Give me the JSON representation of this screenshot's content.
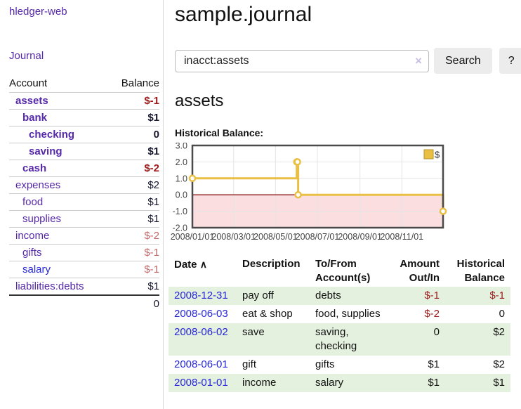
{
  "sidebar": {
    "brand": "hledger-web",
    "nav": {
      "journal": "Journal"
    },
    "accounts_table": {
      "headers": {
        "account": "Account",
        "balance": "Balance"
      },
      "rows": [
        {
          "name": "assets",
          "balance": "$-1"
        },
        {
          "name": "bank",
          "balance": "$1"
        },
        {
          "name": "checking",
          "balance": "0"
        },
        {
          "name": "saving",
          "balance": "$1"
        },
        {
          "name": "cash",
          "balance": "$-2"
        },
        {
          "name": "expenses",
          "balance": "$2"
        },
        {
          "name": "food",
          "balance": "$1"
        },
        {
          "name": "supplies",
          "balance": "$1"
        },
        {
          "name": "income",
          "balance": "$-2"
        },
        {
          "name": "gifts",
          "balance": "$-1"
        },
        {
          "name": "salary",
          "balance": "$-1"
        },
        {
          "name": "liabilities:debts",
          "balance": "$1"
        }
      ],
      "total": "0"
    }
  },
  "header": {
    "title": "sample.journal"
  },
  "search": {
    "query": "inacct:assets",
    "clear_icon": "×",
    "button_label": "Search",
    "help_label": "?"
  },
  "account_page": {
    "heading": "assets",
    "chart_label": "Historical Balance:"
  },
  "chart_data": {
    "type": "line",
    "title": "Historical Balance",
    "step": true,
    "ylim": [
      -2,
      3
    ],
    "yticks": [
      "3.0",
      "2.0",
      "1.0",
      "0.0",
      "-1.0",
      "-2.0"
    ],
    "xticks": [
      {
        "label": "2008/01/01",
        "day": 0
      },
      {
        "label": "2008/03/01",
        "day": 60
      },
      {
        "label": "2008/05/01",
        "day": 121
      },
      {
        "label": "2008/07/01",
        "day": 182
      },
      {
        "label": "2008/09/01",
        "day": 244
      },
      {
        "label": "2008/11/01",
        "day": 305
      }
    ],
    "x_domain_days": [
      0,
      365
    ],
    "series": [
      {
        "name": "$",
        "color": "#e9c044",
        "points": [
          {
            "date": "2008-01-01",
            "day": 0,
            "value": 1
          },
          {
            "date": "2008-06-01",
            "day": 152,
            "value": 2
          },
          {
            "date": "2008-06-02",
            "day": 153,
            "value": 2
          },
          {
            "date": "2008-06-03",
            "day": 154,
            "value": 0
          },
          {
            "date": "2008-12-31",
            "day": 365,
            "value": -1
          }
        ]
      }
    ],
    "legend": {
      "label": "$",
      "position": "top-right"
    },
    "grid": true,
    "negative_region_color": "#fbdee0",
    "zero_line_color": "#8b1a1a",
    "border_color": "#4a4a4a",
    "grid_color": "#e4e4e4",
    "tick_label_color": "#444444"
  },
  "register_table": {
    "headers": {
      "date": "Date",
      "sort_asc_icon": "∧",
      "description": "Description",
      "tofrom": "To/From Account(s)",
      "amount": "Amount Out/In",
      "balance": "Historical Balance"
    },
    "rows": [
      {
        "date": "2008-12-31",
        "description": "pay off",
        "tofrom": "debts",
        "amount": "$-1",
        "balance": "$-1"
      },
      {
        "date": "2008-06-03",
        "description": "eat & shop",
        "tofrom": "food, supplies",
        "amount": "$-2",
        "balance": "0"
      },
      {
        "date": "2008-06-02",
        "description": "save",
        "tofrom": "saving, checking",
        "amount": "0",
        "balance": "$2"
      },
      {
        "date": "2008-06-01",
        "description": "gift",
        "tofrom": "gifts",
        "amount": "$1",
        "balance": "$2"
      },
      {
        "date": "2008-01-01",
        "description": "income",
        "tofrom": "salary",
        "amount": "$1",
        "balance": "$1"
      }
    ]
  },
  "colors": {
    "link_purple": "#5629a9",
    "link_blue": "#2626d8",
    "negative_red": "#9d1a1a",
    "negative_faded": "#c16a6a",
    "row_stripe_green": "#e5f1df",
    "chart_gold": "#e9c044"
  }
}
